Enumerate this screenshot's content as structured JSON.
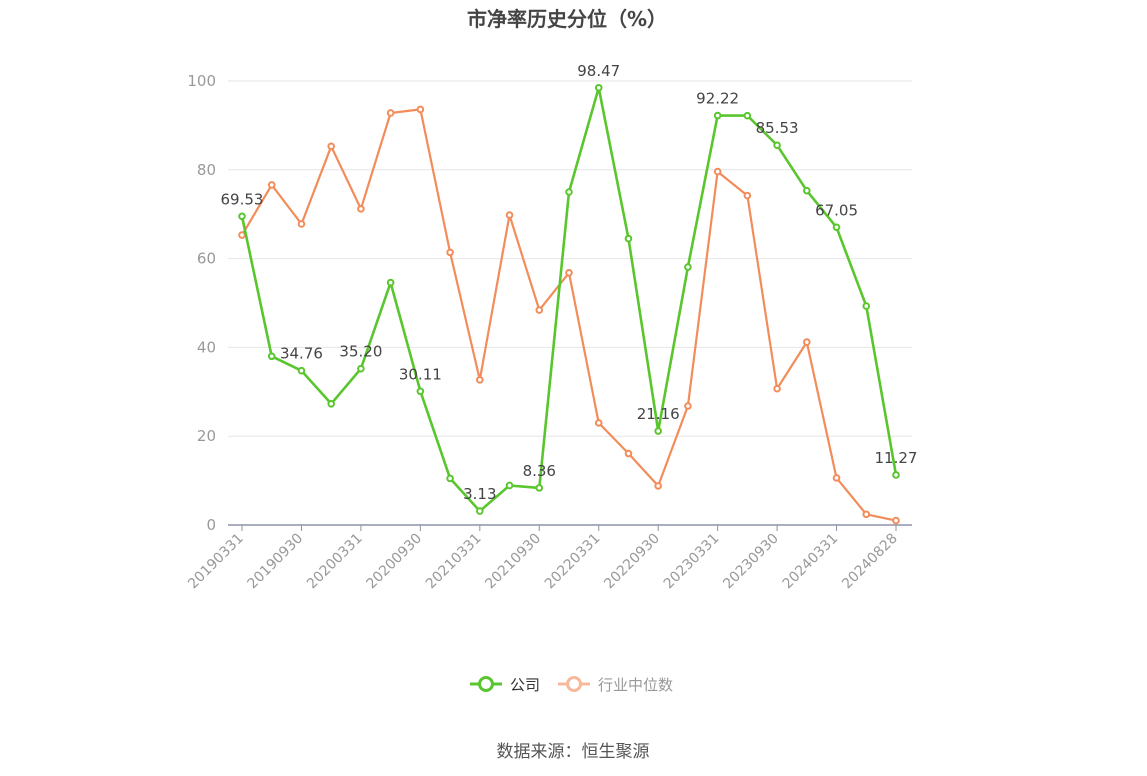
{
  "chart_data": {
    "type": "line",
    "title": "市净率历史分位（%）",
    "source": "数据来源：恒生聚源",
    "ylim": [
      0,
      100
    ],
    "yticks": [
      "0",
      "20",
      "40",
      "60",
      "80",
      "100"
    ],
    "xtick_labels": [
      "20190331",
      "20190930",
      "20200331",
      "20200930",
      "20210331",
      "20210930",
      "20220331",
      "20220930",
      "20230331",
      "20230930",
      "20240331",
      "20240828"
    ],
    "legend_position": "bottom",
    "grid": true,
    "series": [
      {
        "name": "公司",
        "color": "#5ac62e",
        "values": [
          69.53,
          38.0,
          34.76,
          27.3,
          35.2,
          54.6,
          30.11,
          10.5,
          3.13,
          8.9,
          8.36,
          75.0,
          98.47,
          64.5,
          21.16,
          58.1,
          92.22,
          92.2,
          85.53,
          75.3,
          67.05,
          49.3,
          11.27
        ],
        "labels": [
          "69.53",
          "",
          "34.76",
          "",
          "35.20",
          "",
          "30.11",
          "",
          "3.13",
          "",
          "8.36",
          "",
          "98.47",
          "",
          "21.16",
          "",
          "92.22",
          "",
          "85.53",
          "",
          "67.05",
          "",
          "11.27"
        ]
      },
      {
        "name": "行业中位数",
        "color": "#f28c5a",
        "values": [
          65.3,
          76.6,
          67.8,
          85.3,
          71.2,
          92.8,
          93.6,
          61.4,
          32.7,
          69.8,
          48.4,
          56.8,
          23.0,
          16.1,
          8.8,
          26.8,
          79.6,
          74.2,
          30.7,
          41.2,
          10.6,
          2.4,
          1.0
        ]
      }
    ]
  }
}
